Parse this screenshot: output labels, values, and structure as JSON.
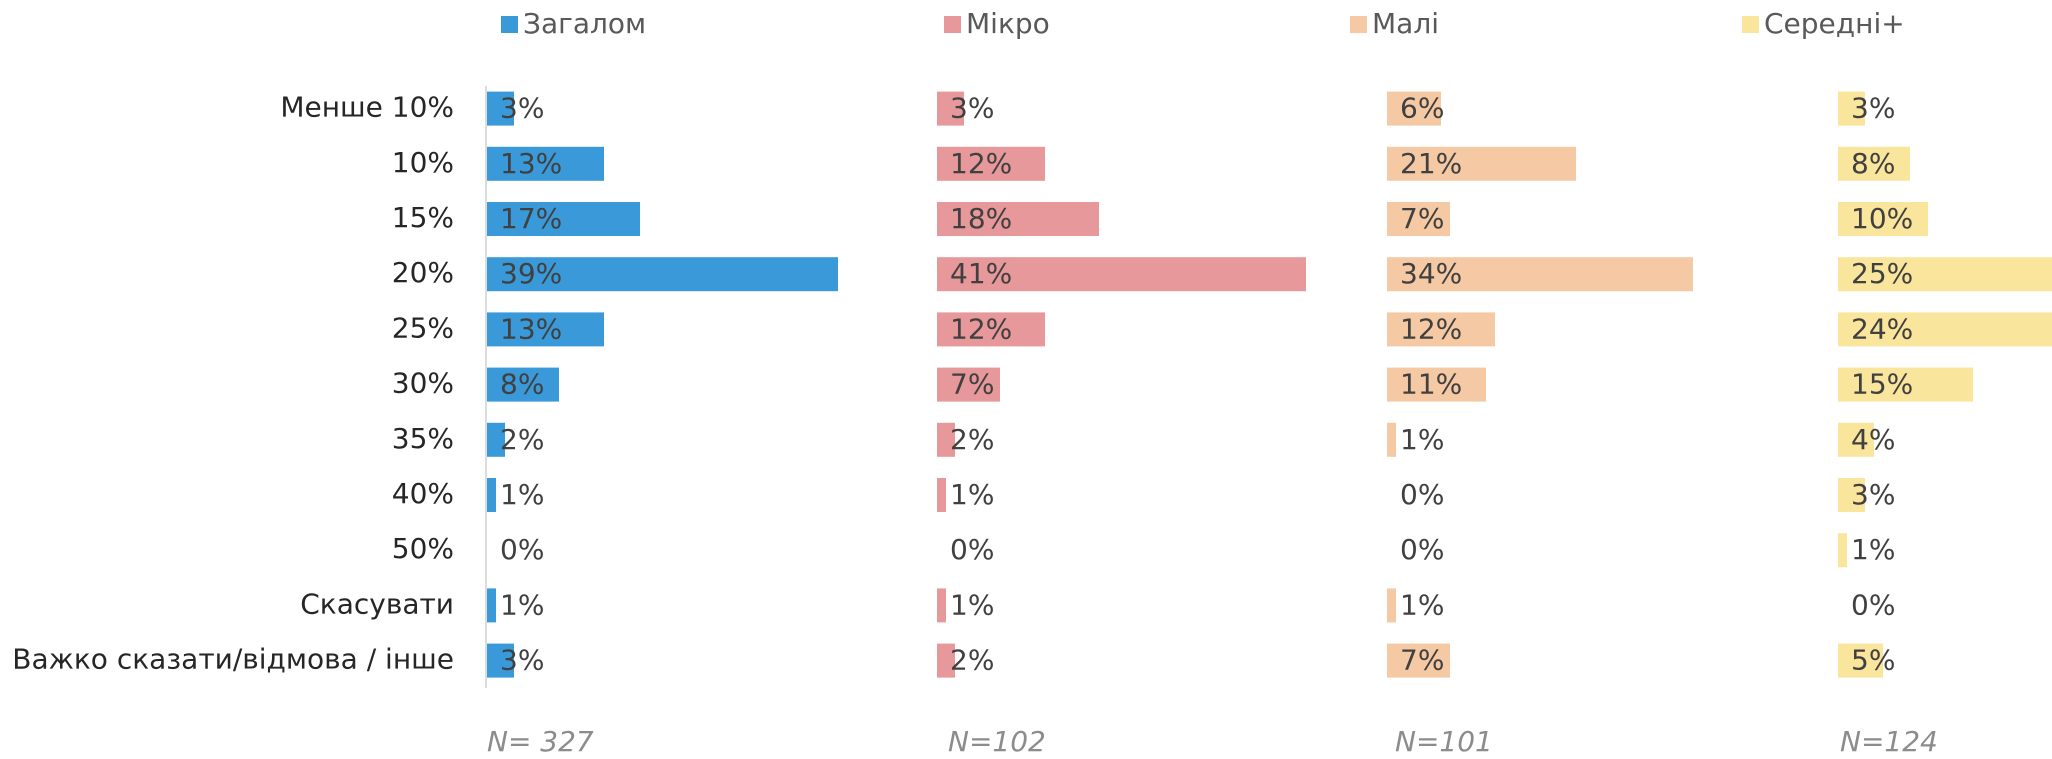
{
  "chart_data": {
    "type": "bar",
    "orientation": "horizontal",
    "categories": [
      "Менше 10%",
      "10%",
      "15%",
      "20%",
      "25%",
      "30%",
      "35%",
      "40%",
      "50%",
      "Скасувати",
      "Важко сказати/відмова / інше"
    ],
    "series": [
      {
        "name": "Загалом",
        "color": "#3a9ad9",
        "note": "N= 327",
        "values": [
          3,
          13,
          17,
          39,
          13,
          8,
          2,
          1,
          0,
          1,
          3
        ],
        "value_labels": [
          "3%",
          "13%",
          "17%",
          "39%",
          "13%",
          "8%",
          "2%",
          "1%",
          "0%",
          "1%",
          "3%"
        ]
      },
      {
        "name": "Мікро",
        "color": "#e6989a",
        "note": "N=102",
        "values": [
          3,
          12,
          18,
          41,
          12,
          7,
          2,
          1,
          0,
          1,
          2
        ],
        "value_labels": [
          "3%",
          "12%",
          "18%",
          "41%",
          "12%",
          "7%",
          "2%",
          "1%",
          "0%",
          "1%",
          "2%"
        ]
      },
      {
        "name": "Малі",
        "color": "#f5c9a3",
        "note": "N=101",
        "values": [
          6,
          21,
          7,
          34,
          12,
          11,
          1,
          0,
          0,
          1,
          7
        ],
        "value_labels": [
          "6%",
          "21%",
          "7%",
          "34%",
          "12%",
          "11%",
          "1%",
          "0%",
          "0%",
          "1%",
          "7%"
        ]
      },
      {
        "name": "Середні+",
        "color": "#fae59c",
        "note": "N=124",
        "values": [
          3,
          8,
          10,
          25,
          24,
          15,
          4,
          3,
          1,
          0,
          5
        ],
        "value_labels": [
          "3%",
          "8%",
          "10%",
          "25%",
          "24%",
          "15%",
          "4%",
          "3%",
          "1%",
          "0%",
          "5%"
        ]
      }
    ]
  }
}
